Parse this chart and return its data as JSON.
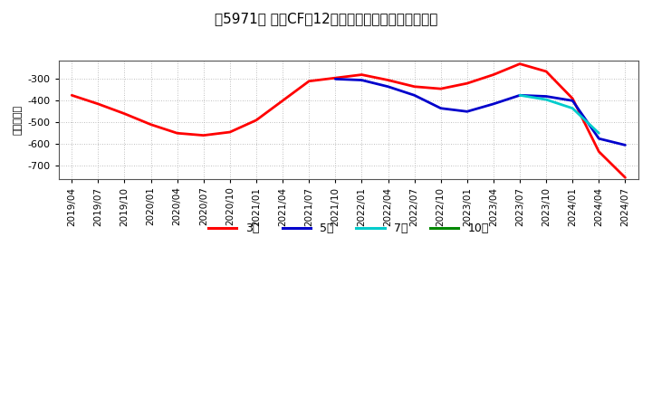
{
  "title": "［5971］ 投資CFの12か月移動合計の平均値の推移",
  "ylabel": "（百万円）",
  "background_color": "#ffffff",
  "plot_bg_color": "#ffffff",
  "grid_color": "#aaaaaa",
  "ylim": [
    -760,
    -215
  ],
  "yticks": [
    -700,
    -600,
    -500,
    -400,
    -300
  ],
  "series": {
    "3yr": {
      "label": "3年",
      "color": "#ff0000",
      "dates": [
        "2019/04",
        "2019/07",
        "2019/10",
        "2020/01",
        "2020/04",
        "2020/07",
        "2020/10",
        "2021/01",
        "2021/04",
        "2021/07",
        "2021/10",
        "2022/01",
        "2022/04",
        "2022/07",
        "2022/10",
        "2023/01",
        "2023/04",
        "2023/07",
        "2023/10",
        "2024/01",
        "2024/04",
        "2024/07"
      ],
      "values": [
        -375,
        -415,
        -460,
        -510,
        -550,
        -560,
        -545,
        -490,
        -400,
        -310,
        -295,
        -280,
        -305,
        -335,
        -345,
        -320,
        -280,
        -230,
        -265,
        -390,
        -635,
        -755
      ]
    },
    "5yr": {
      "label": "5年",
      "color": "#0000cc",
      "dates": [
        "2021/10",
        "2022/01",
        "2022/04",
        "2022/07",
        "2022/10",
        "2023/01",
        "2023/04",
        "2023/07",
        "2023/10",
        "2024/01",
        "2024/04",
        "2024/07"
      ],
      "values": [
        -300,
        -305,
        -335,
        -375,
        -435,
        -450,
        -415,
        -375,
        -380,
        -400,
        -575,
        -605
      ]
    },
    "7yr": {
      "label": "7年",
      "color": "#00cccc",
      "dates": [
        "2023/07",
        "2023/10",
        "2024/01",
        "2024/04"
      ],
      "values": [
        -375,
        -395,
        -435,
        -550
      ]
    },
    "10yr": {
      "label": "10年",
      "color": "#008800",
      "dates": [],
      "values": []
    }
  },
  "xtick_labels": [
    "2019/04",
    "2019/07",
    "2019/10",
    "2020/01",
    "2020/04",
    "2020/07",
    "2020/10",
    "2021/01",
    "2021/04",
    "2021/07",
    "2021/10",
    "2022/01",
    "2022/04",
    "2022/07",
    "2022/10",
    "2023/01",
    "2023/04",
    "2023/07",
    "2023/10",
    "2024/01",
    "2024/04",
    "2024/07"
  ],
  "legend_entries": [
    {
      "label": "3年",
      "color": "#ff0000"
    },
    {
      "label": "5年",
      "color": "#0000cc"
    },
    {
      "label": "7年",
      "color": "#00cccc"
    },
    {
      "label": "10年",
      "color": "#008800"
    }
  ]
}
